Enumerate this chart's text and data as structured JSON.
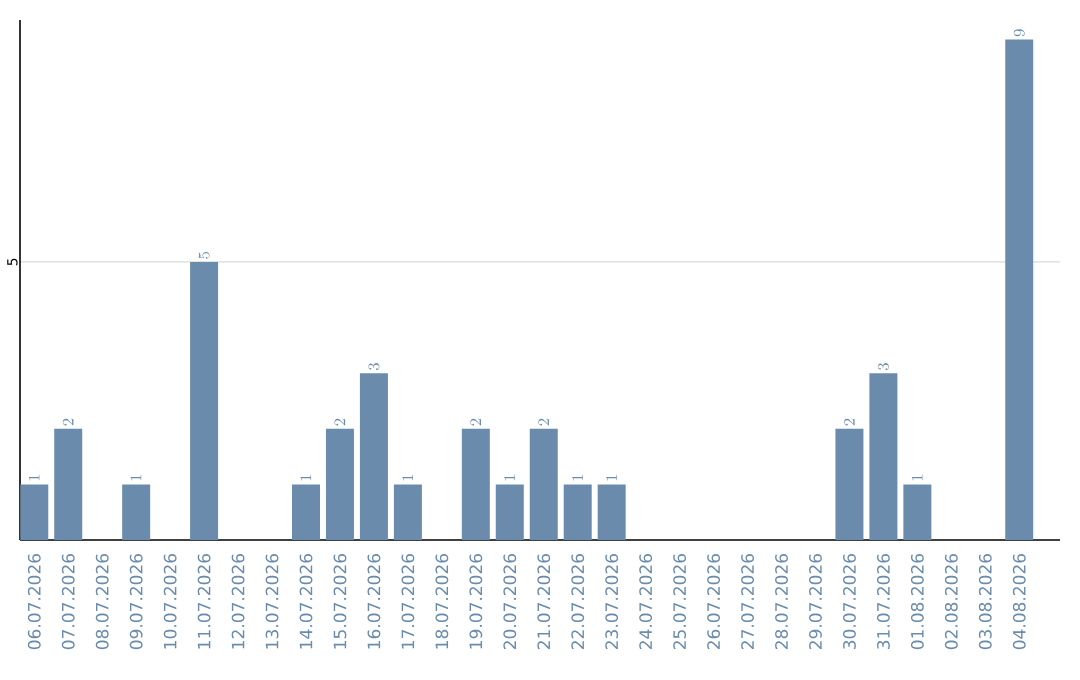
{
  "chart_data": {
    "type": "bar",
    "categories": [
      "06.07.2026",
      "07.07.2026",
      "08.07.2026",
      "09.07.2026",
      "10.07.2026",
      "11.07.2026",
      "12.07.2026",
      "13.07.2026",
      "14.07.2026",
      "15.07.2026",
      "16.07.2026",
      "17.07.2026",
      "18.07.2026",
      "19.07.2026",
      "20.07.2026",
      "21.07.2026",
      "22.07.2026",
      "23.07.2026",
      "24.07.2026",
      "25.07.2026",
      "26.07.2026",
      "27.07.2026",
      "28.07.2026",
      "29.07.2026",
      "30.07.2026",
      "31.07.2026",
      "01.08.2026",
      "02.08.2026",
      "03.08.2026",
      "04.08.2026"
    ],
    "values": [
      1,
      2,
      null,
      1,
      null,
      5,
      null,
      null,
      1,
      2,
      3,
      1,
      null,
      2,
      1,
      2,
      1,
      1,
      null,
      null,
      null,
      null,
      null,
      null,
      2,
      3,
      1,
      null,
      null,
      9
    ],
    "color": "#6a8bab",
    "ylim": [
      0,
      9.35
    ],
    "yticks": [
      5
    ],
    "grid": "y",
    "data_labels": true
  }
}
